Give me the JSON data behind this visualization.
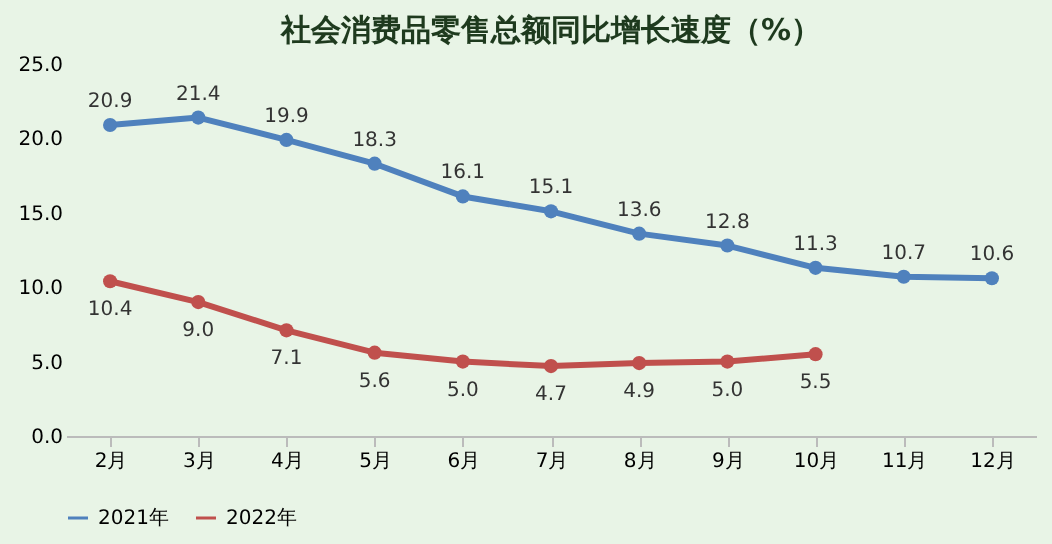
{
  "chart_data": {
    "type": "line",
    "title": "社会消费品零售总额同比增长速度（%）",
    "categories": [
      "2月",
      "3月",
      "4月",
      "5月",
      "6月",
      "7月",
      "8月",
      "9月",
      "10月",
      "11月",
      "12月"
    ],
    "series": [
      {
        "name": "2021年",
        "color": "#4f81bd",
        "values": [
          20.9,
          21.4,
          19.9,
          18.3,
          16.1,
          15.1,
          13.6,
          12.8,
          11.3,
          10.7,
          10.6
        ],
        "value_labels": [
          "20.9",
          "21.4",
          "19.9",
          "18.3",
          "16.1",
          "15.1",
          "13.6",
          "12.8",
          "11.3",
          "10.7",
          "10.6"
        ]
      },
      {
        "name": "2022年",
        "color": "#c0504d",
        "values": [
          10.4,
          9.0,
          7.1,
          5.6,
          5.0,
          4.7,
          4.9,
          5.0,
          5.5,
          null,
          null
        ],
        "value_labels": [
          "10.4",
          "9.0",
          "7.1",
          "5.6",
          "5.0",
          "4.7",
          "4.9",
          "5.0",
          "5.5",
          null,
          null
        ]
      }
    ],
    "ylim": [
      0,
      25
    ],
    "yticks": [
      {
        "value": 0,
        "label": "0.0"
      },
      {
        "value": 5,
        "label": "5.0"
      },
      {
        "value": 10,
        "label": "10.0"
      },
      {
        "value": 15,
        "label": "15.0"
      },
      {
        "value": 20,
        "label": "20.0"
      },
      {
        "value": 25,
        "label": "25.0"
      }
    ],
    "grid": false,
    "legend": "bottom",
    "marker": "circle",
    "line_style": "solid"
  }
}
